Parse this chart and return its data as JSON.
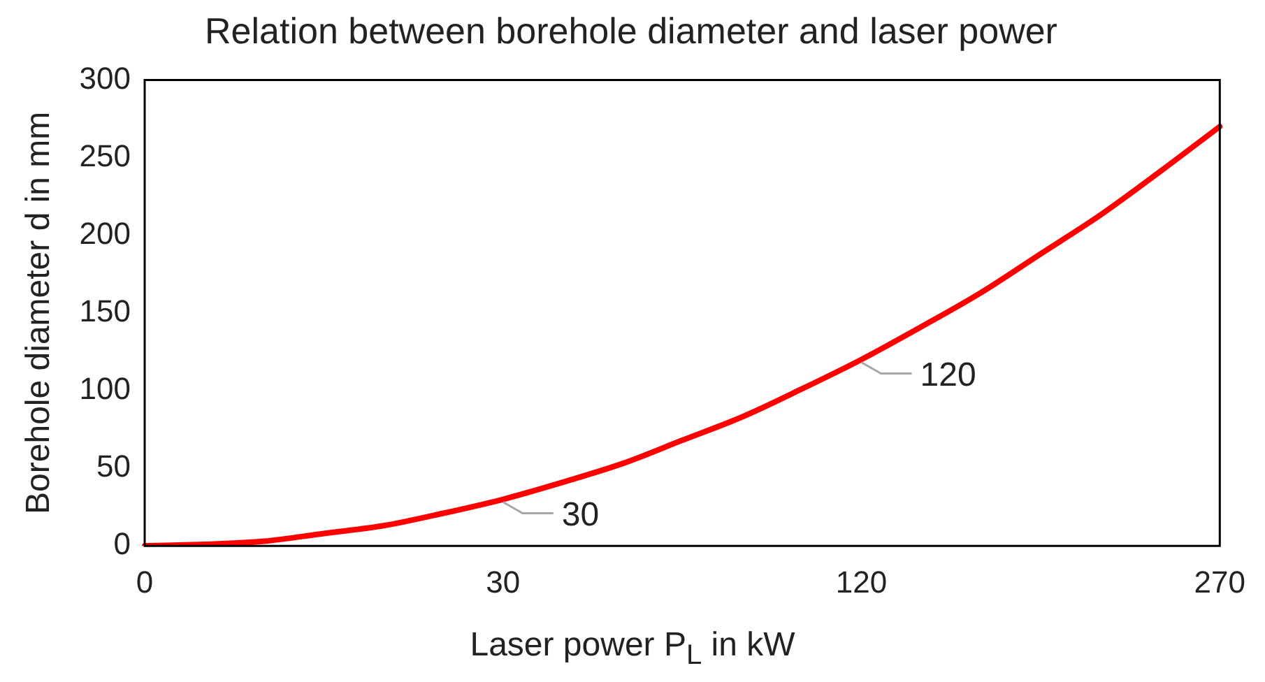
{
  "chart_data": {
    "type": "line",
    "title": "Relation between borehole diameter and laser power",
    "xlabel": "Laser power P$_{L}$ in kW",
    "ylabel": "Borehole diameter d in mm",
    "categories": [
      "0",
      null,
      null,
      null,
      null,
      null,
      "30",
      null,
      null,
      null,
      null,
      null,
      "120",
      null,
      null,
      null,
      null,
      null,
      "270"
    ],
    "series": [
      {
        "color": "#ff0000",
        "values": [
          0,
          1,
          3,
          8,
          13,
          21,
          30,
          41,
          53,
          68,
          83,
          101,
          120,
          141,
          163,
          188,
          213,
          241,
          270
        ],
        "value_labels": [
          null,
          null,
          null,
          null,
          null,
          null,
          "30",
          null,
          null,
          null,
          null,
          null,
          "120",
          null,
          null,
          null,
          null,
          null,
          null
        ]
      }
    ],
    "ylim": [
      0,
      300
    ],
    "yticks": [
      0,
      50,
      100,
      150,
      200,
      250,
      300
    ],
    "grid": false,
    "legend": false,
    "marker": "none",
    "line_style": "solid"
  }
}
